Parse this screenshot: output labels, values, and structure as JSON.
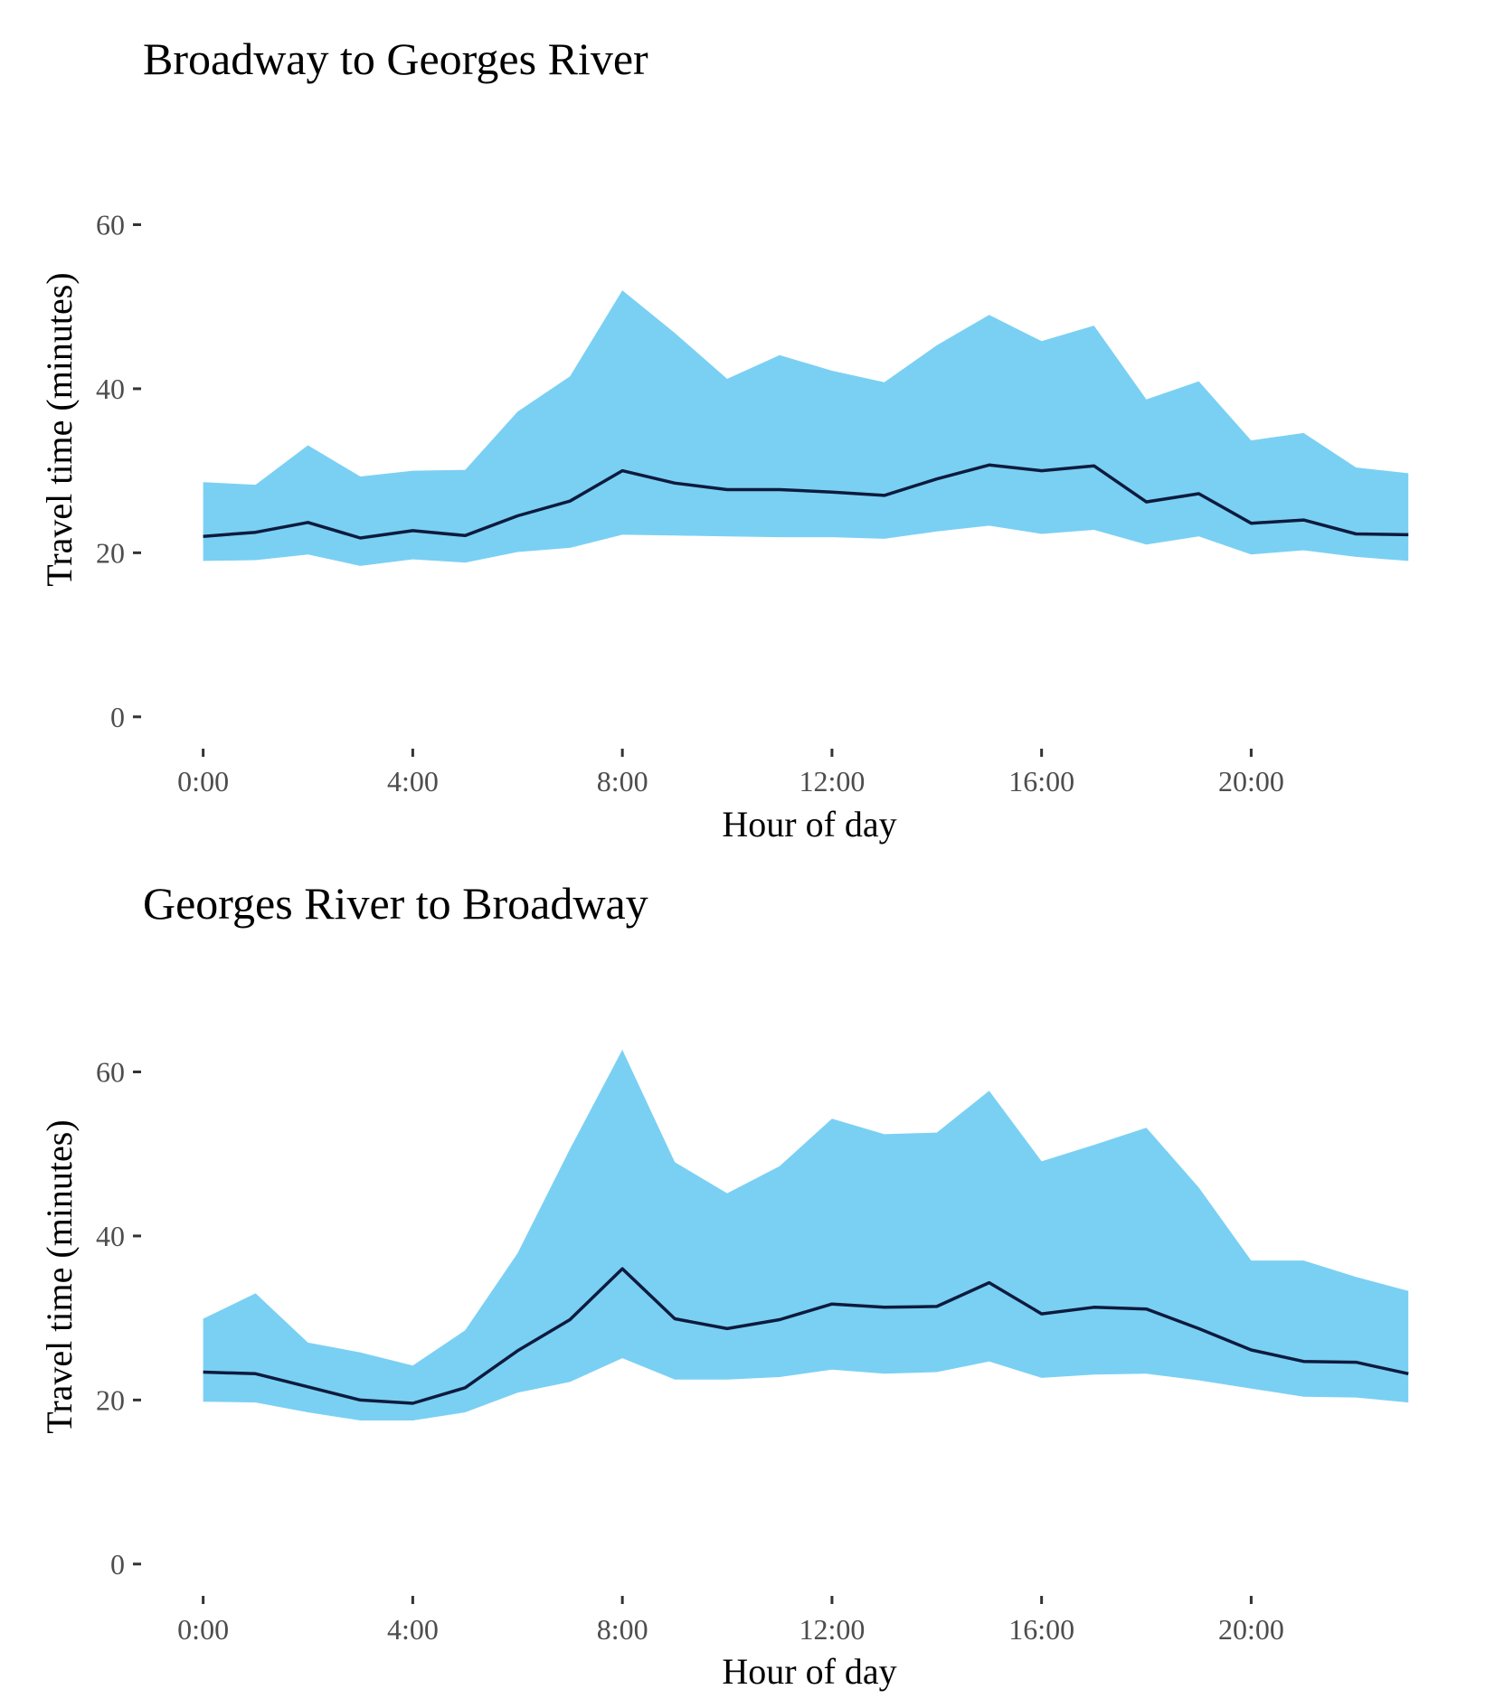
{
  "colors": {
    "band_fill": "#7ad0f3",
    "line": "#0d1b3e",
    "tick": "#333333",
    "tick_label": "#4d4d4d",
    "background": "#ffffff"
  },
  "chart_data": [
    {
      "type": "area",
      "title": "Broadway to Georges River",
      "xlabel": "Hour of day",
      "ylabel": "Travel time (minutes)",
      "x": [
        0,
        1,
        2,
        3,
        4,
        5,
        6,
        7,
        8,
        9,
        10,
        11,
        12,
        13,
        14,
        15,
        16,
        17,
        18,
        19,
        20,
        21,
        22,
        23
      ],
      "x_ticks": [
        0,
        4,
        8,
        12,
        16,
        20
      ],
      "x_tick_labels": [
        "0:00",
        "4:00",
        "8:00",
        "12:00",
        "16:00",
        "20:00"
      ],
      "y_ticks": [
        0,
        20,
        40,
        60
      ],
      "y_tick_labels": [
        "0",
        "20",
        "40",
        "60"
      ],
      "xlim": [
        -1.15,
        23.6
      ],
      "ylim": [
        -3,
        67
      ],
      "grid": false,
      "series": [
        {
          "role": "band_upper",
          "values": [
            28.6,
            28.3,
            33.1,
            29.3,
            30.0,
            30.1,
            37.2,
            41.5,
            52.0,
            46.8,
            41.2,
            44.1,
            42.2,
            40.8,
            45.3,
            49.0,
            45.8,
            47.7,
            38.7,
            40.9,
            33.7,
            34.6,
            30.4,
            29.7
          ]
        },
        {
          "role": "band_lower",
          "values": [
            19.0,
            19.1,
            19.8,
            18.4,
            19.2,
            18.8,
            20.1,
            20.6,
            22.2,
            22.1,
            22.0,
            21.9,
            21.9,
            21.7,
            22.6,
            23.3,
            22.3,
            22.8,
            21.0,
            22.0,
            19.8,
            20.3,
            19.5,
            19.0
          ]
        },
        {
          "role": "median",
          "values": [
            22.0,
            22.5,
            23.7,
            21.8,
            22.7,
            22.1,
            24.5,
            26.3,
            30.0,
            28.5,
            27.7,
            27.7,
            27.4,
            27.0,
            29.0,
            30.7,
            30.0,
            30.6,
            26.2,
            27.2,
            23.6,
            24.0,
            22.3,
            22.2
          ]
        }
      ]
    },
    {
      "type": "area",
      "title": "Georges River to Broadway",
      "xlabel": "Hour of day",
      "ylabel": "Travel time (minutes)",
      "x": [
        0,
        1,
        2,
        3,
        4,
        5,
        6,
        7,
        8,
        9,
        10,
        11,
        12,
        13,
        14,
        15,
        16,
        17,
        18,
        19,
        20,
        21,
        22,
        23
      ],
      "x_ticks": [
        0,
        4,
        8,
        12,
        16,
        20
      ],
      "x_tick_labels": [
        "0:00",
        "4:00",
        "8:00",
        "12:00",
        "16:00",
        "20:00"
      ],
      "y_ticks": [
        0,
        20,
        40,
        60
      ],
      "y_tick_labels": [
        "0",
        "20",
        "40",
        "60"
      ],
      "xlim": [
        -1.15,
        23.6
      ],
      "ylim": [
        -3,
        67
      ],
      "grid": false,
      "series": [
        {
          "role": "band_upper",
          "values": [
            29.9,
            33.0,
            27.0,
            25.8,
            24.2,
            28.5,
            37.9,
            50.6,
            62.7,
            49.0,
            45.2,
            48.5,
            54.3,
            52.4,
            52.6,
            57.7,
            49.1,
            51.1,
            53.2,
            45.9,
            37.0,
            37.0,
            35.0,
            33.3
          ]
        },
        {
          "role": "band_lower",
          "values": [
            19.8,
            19.7,
            18.5,
            17.5,
            17.5,
            18.5,
            20.9,
            22.2,
            25.1,
            22.5,
            22.5,
            22.8,
            23.7,
            23.2,
            23.4,
            24.7,
            22.7,
            23.1,
            23.2,
            22.4,
            21.4,
            20.4,
            20.3,
            19.7
          ]
        },
        {
          "role": "median",
          "values": [
            23.4,
            23.2,
            21.6,
            20.0,
            19.6,
            21.5,
            26.0,
            29.8,
            36.0,
            29.9,
            28.7,
            29.8,
            31.7,
            31.3,
            31.4,
            34.3,
            30.5,
            31.3,
            31.1,
            28.7,
            26.1,
            24.7,
            24.6,
            23.2
          ]
        }
      ]
    }
  ]
}
